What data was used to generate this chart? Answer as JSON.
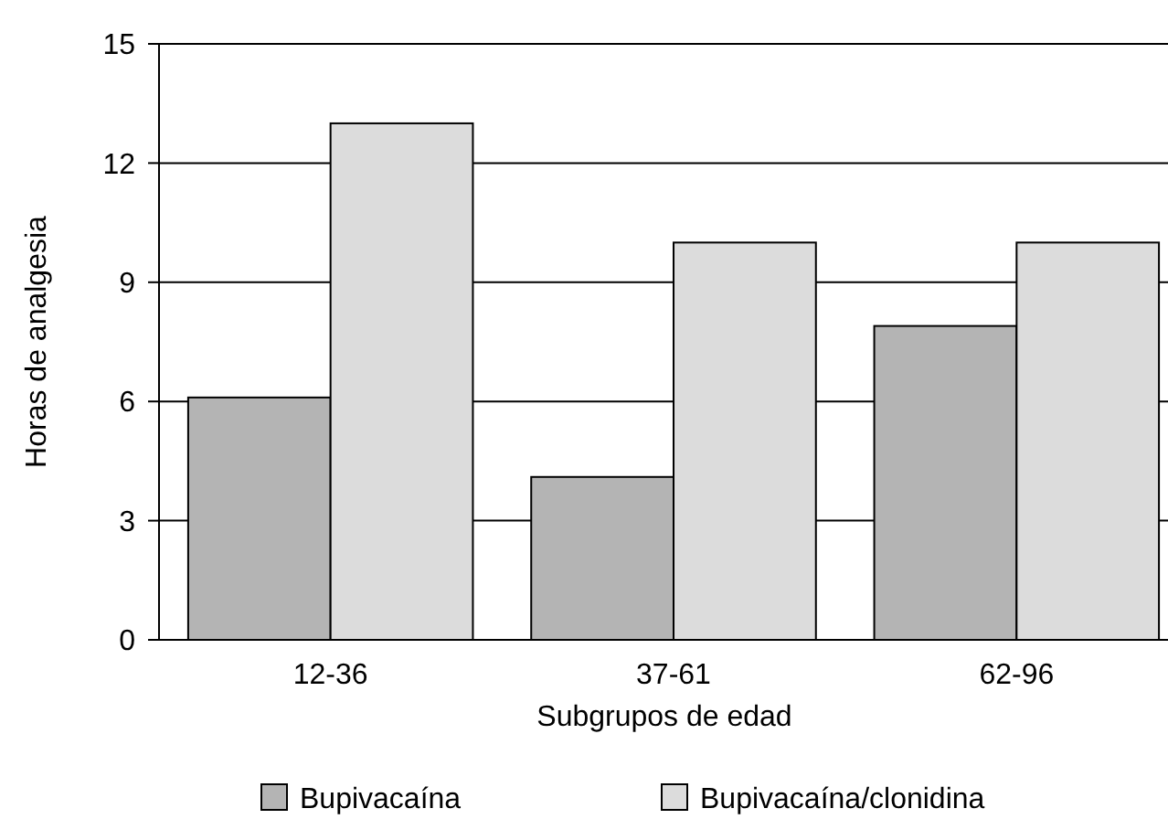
{
  "chart_data": {
    "type": "bar",
    "xlabel": "Subgrupos de edad",
    "ylabel": "Horas de analgesia",
    "categories": [
      "12-36",
      "37-61",
      "62-96"
    ],
    "series": [
      {
        "name": "Bupivacaína",
        "color": "#b4b4b4",
        "values": [
          6.1,
          4.1,
          7.9
        ]
      },
      {
        "name": "Bupivacaína/clonidina",
        "color": "#dcdcdc",
        "values": [
          13,
          10,
          10
        ]
      }
    ],
    "ylim": [
      0,
      15
    ],
    "yticks": [
      0,
      3,
      6,
      9,
      12,
      15
    ],
    "grid": "y",
    "legend": "bottom"
  }
}
